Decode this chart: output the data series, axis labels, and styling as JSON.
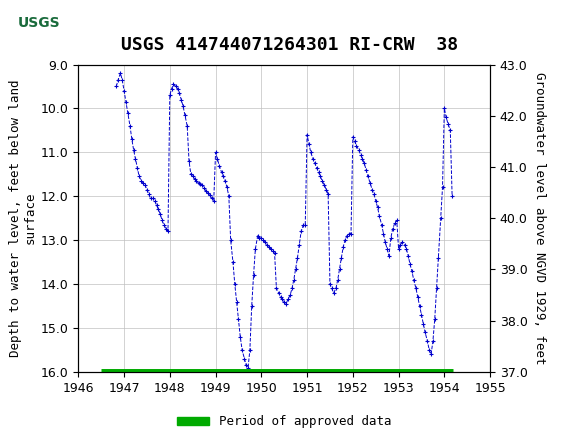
{
  "title": "USGS 414744071264301 RI-CRW  38",
  "ylabel_left": "Depth to water level, feet below land\nsurface",
  "ylabel_right": "Groundwater level above NGVD 1929, feet",
  "xlim": [
    1946,
    1955
  ],
  "ylim_left": [
    16.0,
    9.0
  ],
  "ylim_right": [
    37.0,
    43.0
  ],
  "yticks_left": [
    9.0,
    10.0,
    11.0,
    12.0,
    13.0,
    14.0,
    15.0,
    16.0
  ],
  "yticks_right": [
    37.0,
    38.0,
    39.0,
    40.0,
    41.0,
    42.0,
    43.0
  ],
  "xticks": [
    1946,
    1947,
    1948,
    1949,
    1950,
    1951,
    1952,
    1953,
    1954,
    1955
  ],
  "line_color": "#0000CC",
  "marker": "+",
  "linestyle": "--",
  "grid_color": "#C0C0C0",
  "background_color": "#FFFFFF",
  "header_color": "#1A6B3C",
  "approved_data_color": "#00AA00",
  "approved_data_start": 1946.5,
  "approved_data_end": 1954.2,
  "legend_label": "Period of approved data",
  "title_fontsize": 13,
  "axis_fontsize": 9,
  "tick_fontsize": 9,
  "x_data": [
    1946.83,
    1946.87,
    1946.92,
    1946.96,
    1947.0,
    1947.04,
    1947.08,
    1947.13,
    1947.17,
    1947.21,
    1947.25,
    1947.29,
    1947.33,
    1947.38,
    1947.42,
    1947.46,
    1947.5,
    1947.54,
    1947.58,
    1947.63,
    1947.67,
    1947.71,
    1947.75,
    1947.79,
    1947.83,
    1947.87,
    1947.92,
    1947.96,
    1948.0,
    1948.04,
    1948.08,
    1948.13,
    1948.17,
    1948.21,
    1948.25,
    1948.29,
    1948.33,
    1948.38,
    1948.42,
    1948.46,
    1948.5,
    1948.54,
    1948.58,
    1948.63,
    1948.67,
    1948.71,
    1948.75,
    1948.79,
    1948.83,
    1948.87,
    1948.92,
    1948.96,
    1949.0,
    1949.04,
    1949.08,
    1949.13,
    1949.17,
    1949.21,
    1949.25,
    1949.29,
    1949.33,
    1949.38,
    1949.42,
    1949.46,
    1949.5,
    1949.54,
    1949.58,
    1949.63,
    1949.67,
    1949.71,
    1949.75,
    1949.79,
    1949.83,
    1949.87,
    1949.92,
    1949.96,
    1950.0,
    1950.04,
    1950.08,
    1950.13,
    1950.17,
    1950.21,
    1950.25,
    1950.29,
    1950.33,
    1950.38,
    1950.42,
    1950.46,
    1950.5,
    1950.54,
    1950.58,
    1950.63,
    1950.67,
    1950.71,
    1950.75,
    1950.79,
    1950.83,
    1950.87,
    1950.92,
    1950.96,
    1951.0,
    1951.04,
    1951.08,
    1951.13,
    1951.17,
    1951.21,
    1951.25,
    1951.29,
    1951.33,
    1951.38,
    1951.42,
    1951.46,
    1951.5,
    1951.54,
    1951.58,
    1951.63,
    1951.67,
    1951.71,
    1951.75,
    1951.79,
    1951.83,
    1951.87,
    1951.92,
    1951.96,
    1952.0,
    1952.04,
    1952.08,
    1952.13,
    1952.17,
    1952.21,
    1952.25,
    1952.29,
    1952.33,
    1952.38,
    1952.42,
    1952.46,
    1952.5,
    1952.54,
    1952.58,
    1952.63,
    1952.67,
    1952.71,
    1952.75,
    1952.79,
    1952.83,
    1952.87,
    1952.92,
    1952.96,
    1953.0,
    1953.04,
    1953.08,
    1953.13,
    1953.17,
    1953.21,
    1953.25,
    1953.29,
    1953.33,
    1953.38,
    1953.42,
    1953.46,
    1953.5,
    1953.54,
    1953.58,
    1953.63,
    1953.67,
    1953.71,
    1953.75,
    1953.79,
    1953.83,
    1953.87,
    1953.92,
    1953.96,
    1954.0,
    1954.04,
    1954.08,
    1954.13,
    1954.17
  ],
  "y_data": [
    9.5,
    9.35,
    9.2,
    9.35,
    9.6,
    9.85,
    10.1,
    10.4,
    10.7,
    10.95,
    11.15,
    11.35,
    11.55,
    11.65,
    11.7,
    11.75,
    11.85,
    11.95,
    12.05,
    12.05,
    12.1,
    12.2,
    12.3,
    12.4,
    12.55,
    12.65,
    12.75,
    12.8,
    9.7,
    9.55,
    9.45,
    9.5,
    9.55,
    9.65,
    9.8,
    9.95,
    10.15,
    10.4,
    11.2,
    11.5,
    11.55,
    11.6,
    11.65,
    11.7,
    11.72,
    11.75,
    11.82,
    11.88,
    11.92,
    11.98,
    12.05,
    12.1,
    11.0,
    11.15,
    11.3,
    11.45,
    11.55,
    11.65,
    11.8,
    12.0,
    13.0,
    13.5,
    14.0,
    14.4,
    14.8,
    15.2,
    15.5,
    15.7,
    15.85,
    15.9,
    15.5,
    14.5,
    13.8,
    13.2,
    12.9,
    12.95,
    12.95,
    13.0,
    13.05,
    13.1,
    13.15,
    13.2,
    13.25,
    13.3,
    14.1,
    14.2,
    14.3,
    14.35,
    14.4,
    14.45,
    14.35,
    14.25,
    14.1,
    13.9,
    13.65,
    13.4,
    13.1,
    12.8,
    12.65,
    12.65,
    10.6,
    10.8,
    11.0,
    11.15,
    11.25,
    11.35,
    11.45,
    11.55,
    11.65,
    11.75,
    11.85,
    11.95,
    14.0,
    14.1,
    14.2,
    14.1,
    13.9,
    13.65,
    13.4,
    13.15,
    13.0,
    12.9,
    12.85,
    12.85,
    10.65,
    10.75,
    10.85,
    10.95,
    11.05,
    11.15,
    11.25,
    11.4,
    11.55,
    11.7,
    11.85,
    11.95,
    12.1,
    12.25,
    12.45,
    12.65,
    12.85,
    13.05,
    13.2,
    13.35,
    12.95,
    12.75,
    12.6,
    12.55,
    13.2,
    13.1,
    13.05,
    13.1,
    13.2,
    13.35,
    13.55,
    13.7,
    13.9,
    14.1,
    14.3,
    14.5,
    14.7,
    14.9,
    15.1,
    15.3,
    15.5,
    15.6,
    15.3,
    14.8,
    14.1,
    13.4,
    12.5,
    11.8,
    10.0,
    10.2,
    10.35,
    10.5,
    12.0
  ]
}
